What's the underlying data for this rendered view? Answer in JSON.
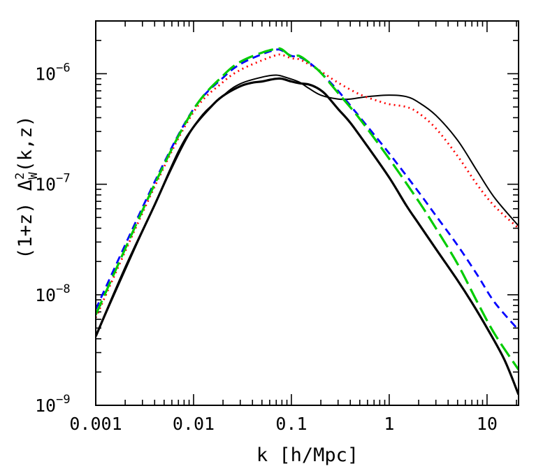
{
  "chart_data": {
    "type": "line",
    "title": "",
    "xlabel": "k [h/Mpc]",
    "ylabel": {
      "prefix": "(1+z) Δ",
      "sup": "2",
      "sub": "W",
      "suffix": "(k,z)"
    },
    "xscale": "log",
    "yscale": "log",
    "xlim": [
      0.001,
      21
    ],
    "ylim": [
      1e-09,
      3e-06
    ],
    "xticks": [
      {
        "value": 0.001,
        "label": "0.001"
      },
      {
        "value": 0.01,
        "label": "0.01"
      },
      {
        "value": 0.1,
        "label": "0.1"
      },
      {
        "value": 1,
        "label": "1"
      },
      {
        "value": 10,
        "label": "10"
      }
    ],
    "yticks": [
      {
        "value": 1e-09,
        "base": "10",
        "exp": "−9"
      },
      {
        "value": 1e-08,
        "base": "10",
        "exp": "−8"
      },
      {
        "value": 1e-07,
        "base": "10",
        "exp": "−7"
      },
      {
        "value": 1e-06,
        "base": "10",
        "exp": "−6"
      }
    ],
    "grid": false,
    "legend": "none",
    "series": [
      {
        "color": "#000000",
        "dash": "solid",
        "width": 3.2,
        "x": [
          0.001,
          0.002,
          0.004,
          0.007,
          0.01,
          0.015,
          0.02,
          0.03,
          0.04,
          0.05,
          0.06,
          0.07,
          0.08,
          0.1,
          0.12,
          0.15,
          0.18,
          0.22,
          0.3,
          0.4,
          0.6,
          1,
          1.5,
          2,
          3,
          5,
          7,
          10,
          15,
          21
        ],
        "y": [
          4.2e-09,
          1.75e-08,
          6.5e-08,
          1.95e-07,
          3.3e-07,
          5e-07,
          6.3e-07,
          7.7e-07,
          8.3e-07,
          8.5e-07,
          8.8e-07,
          9e-07,
          9e-07,
          8.5e-07,
          8.2e-07,
          8e-07,
          7.5e-07,
          6.6e-07,
          4.8e-07,
          3.6e-07,
          2.2e-07,
          1.15e-07,
          6.4e-08,
          4.4e-08,
          2.6e-08,
          1.35e-08,
          8.5e-09,
          5e-09,
          2.6e-09,
          1.25e-09
        ]
      },
      {
        "color": "#000000",
        "dash": "solid",
        "width": 2,
        "x": [
          0.001,
          0.004,
          0.01,
          0.02,
          0.03,
          0.05,
          0.07,
          0.09,
          0.12,
          0.15,
          0.2,
          0.3,
          0.4,
          0.6,
          1,
          1.5,
          2,
          3,
          5,
          8,
          12,
          21
        ],
        "y": [
          4.2e-09,
          6.5e-08,
          3.3e-07,
          6.3e-07,
          8.1e-07,
          9.3e-07,
          9.7e-07,
          9.2e-07,
          8.4e-07,
          7.4e-07,
          6.4e-07,
          5.9e-07,
          5.9e-07,
          6.2e-07,
          6.4e-07,
          6.2e-07,
          5.5e-07,
          4.2e-07,
          2.5e-07,
          1.3e-07,
          7.5e-08,
          4.2e-08
        ]
      },
      {
        "color": "#ff0000",
        "dash": "2 5",
        "width": 2.8,
        "x": [
          0.001,
          0.004,
          0.01,
          0.02,
          0.03,
          0.05,
          0.07,
          0.08,
          0.1,
          0.12,
          0.15,
          0.2,
          0.3,
          0.5,
          0.8,
          1,
          1.5,
          2,
          3,
          5,
          8,
          12,
          21
        ],
        "y": [
          6.2e-09,
          9.5e-08,
          4.5e-07,
          8.4e-07,
          1.08e-06,
          1.32e-06,
          1.47e-06,
          1.48e-06,
          1.38e-06,
          1.35e-06,
          1.22e-06,
          1.05e-06,
          8.3e-07,
          6.5e-07,
          5.6e-07,
          5.3e-07,
          5e-07,
          4.4e-07,
          3.2e-07,
          1.8e-07,
          9.8e-08,
          6.3e-08,
          4e-08
        ]
      },
      {
        "color": "#0000ff",
        "dash": "11 7",
        "width": 2.8,
        "x": [
          0.001,
          0.004,
          0.01,
          0.02,
          0.03,
          0.05,
          0.07,
          0.08,
          0.1,
          0.12,
          0.15,
          0.2,
          0.3,
          0.5,
          1,
          2,
          3,
          5,
          8,
          12,
          21
        ],
        "y": [
          7.4e-09,
          1.05e-07,
          4.8e-07,
          9.2e-07,
          1.22e-06,
          1.5e-06,
          1.65e-06,
          1.62e-06,
          1.45e-06,
          1.42e-06,
          1.27e-06,
          1.02e-06,
          7e-07,
          4.05e-07,
          1.9e-07,
          8.5e-08,
          5.2e-08,
          2.8e-08,
          1.5e-08,
          8.5e-09,
          4.8e-09
        ]
      },
      {
        "color": "#00cc00",
        "dash": "22 8",
        "width": 3.2,
        "x": [
          0.001,
          0.004,
          0.01,
          0.02,
          0.03,
          0.05,
          0.07,
          0.08,
          0.1,
          0.12,
          0.15,
          0.2,
          0.3,
          0.5,
          1,
          2,
          3,
          5,
          8,
          12,
          21
        ],
        "y": [
          6.6e-09,
          1e-07,
          4.75e-07,
          9.6e-07,
          1.28e-06,
          1.55e-06,
          1.68e-06,
          1.66e-06,
          1.43e-06,
          1.45e-06,
          1.27e-06,
          1.02e-06,
          6.7e-07,
          3.9e-07,
          1.7e-07,
          7e-08,
          4e-08,
          1.9e-08,
          8.5e-09,
          4.4e-09,
          2.1e-09
        ]
      }
    ]
  }
}
